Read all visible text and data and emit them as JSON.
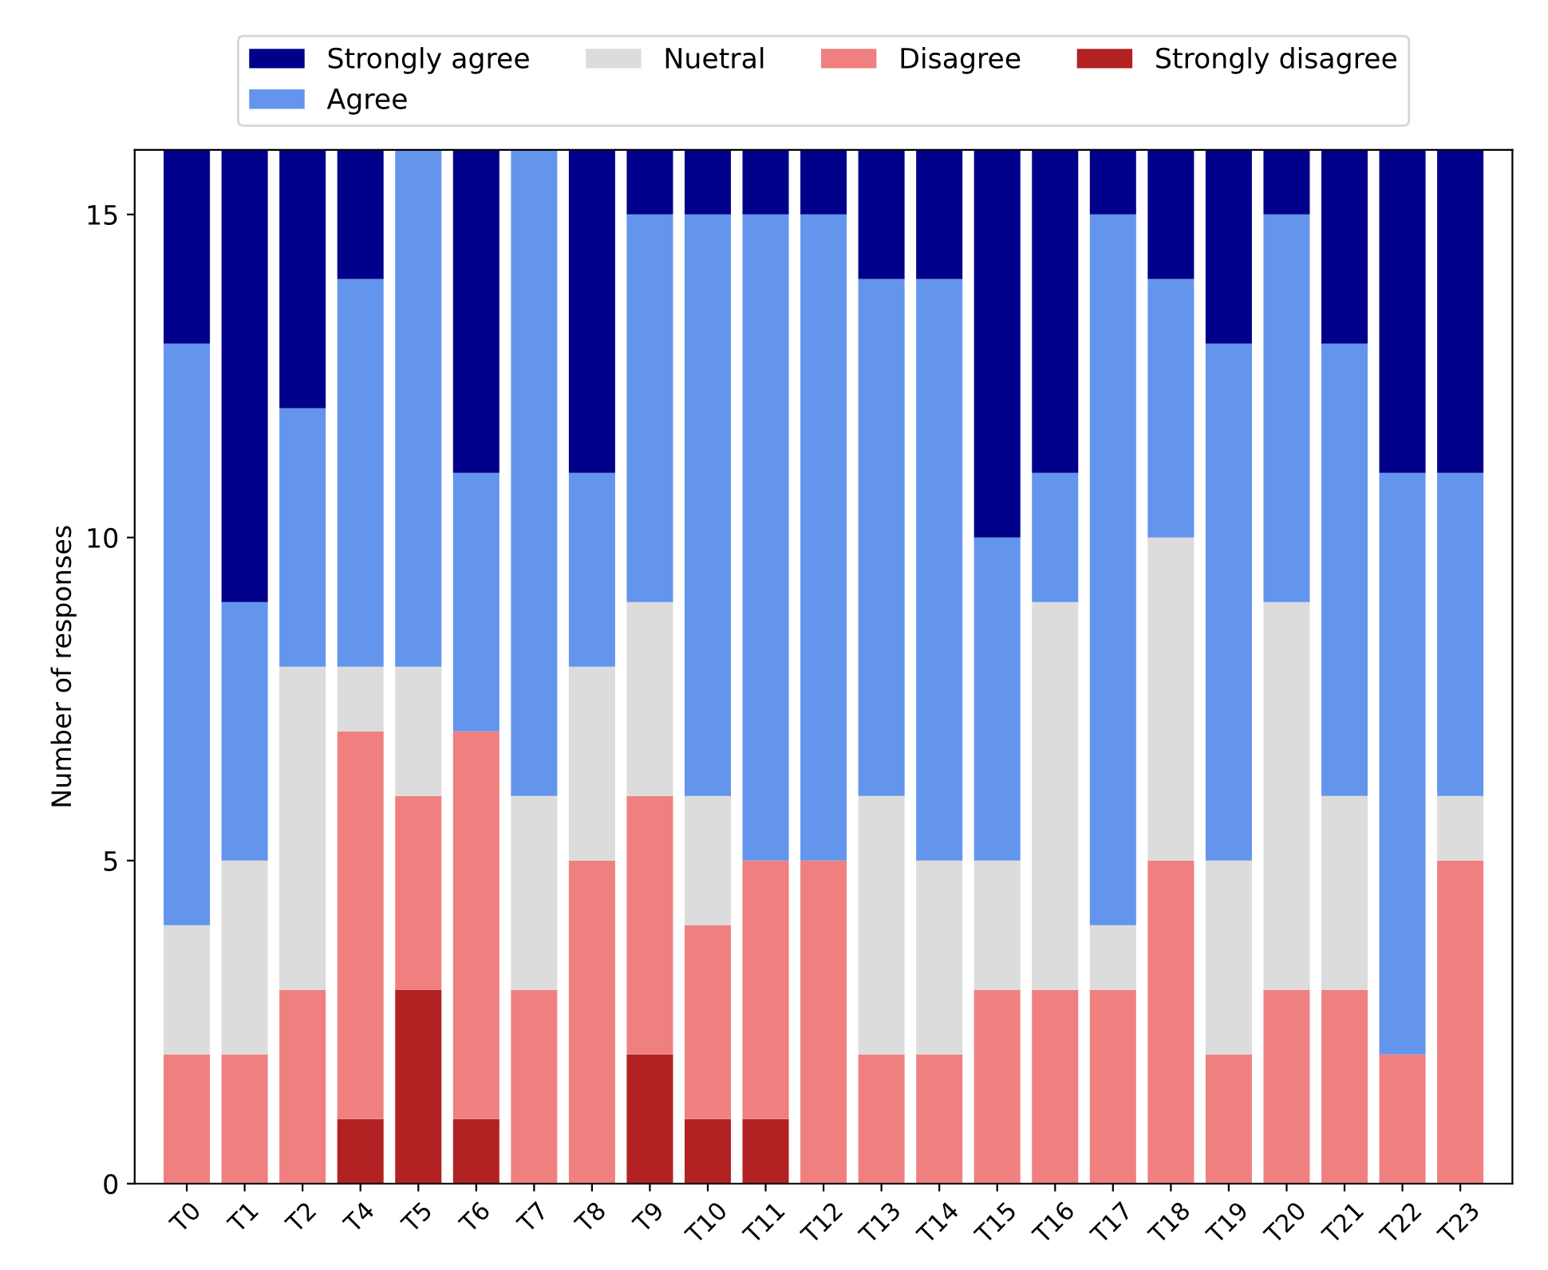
{
  "chart_data": {
    "type": "bar",
    "stacked": true,
    "ylabel": "Number of responses",
    "categories": [
      "T0",
      "T1",
      "T2",
      "T4",
      "T5",
      "T6",
      "T7",
      "T8",
      "T9",
      "T10",
      "T11",
      "T12",
      "T13",
      "T14",
      "T15",
      "T16",
      "T17",
      "T18",
      "T19",
      "T20",
      "T21",
      "T22",
      "T23"
    ],
    "series": [
      {
        "name": "Strongly disagree",
        "color": "#b22222",
        "values": [
          0,
          0,
          0,
          1,
          3,
          1,
          0,
          0,
          2,
          1,
          1,
          0,
          0,
          0,
          0,
          0,
          0,
          0,
          0,
          0,
          0,
          0,
          0
        ]
      },
      {
        "name": "Disagree",
        "color": "#f08080",
        "values": [
          2,
          2,
          3,
          6,
          3,
          6,
          3,
          5,
          4,
          3,
          4,
          5,
          2,
          2,
          3,
          3,
          3,
          5,
          2,
          3,
          3,
          2,
          5
        ]
      },
      {
        "name": "Nuetral",
        "color": "#dcdcdc",
        "values": [
          2,
          3,
          5,
          1,
          2,
          0,
          3,
          3,
          3,
          2,
          0,
          0,
          4,
          3,
          2,
          6,
          1,
          5,
          3,
          6,
          3,
          0,
          1
        ]
      },
      {
        "name": "Agree",
        "color": "#6495ed",
        "values": [
          9,
          4,
          4,
          6,
          8,
          4,
          10,
          3,
          6,
          9,
          10,
          10,
          8,
          9,
          5,
          2,
          11,
          4,
          8,
          6,
          7,
          9,
          5
        ]
      },
      {
        "name": "Strongly agree",
        "color": "#00008b",
        "values": [
          3,
          7,
          4,
          2,
          0,
          5,
          0,
          5,
          1,
          1,
          1,
          1,
          2,
          2,
          6,
          5,
          1,
          2,
          3,
          1,
          3,
          5,
          5
        ]
      }
    ],
    "ylim": [
      0,
      16
    ],
    "yticks": [
      0,
      5,
      10,
      15
    ],
    "grid": false,
    "legend": "top"
  }
}
